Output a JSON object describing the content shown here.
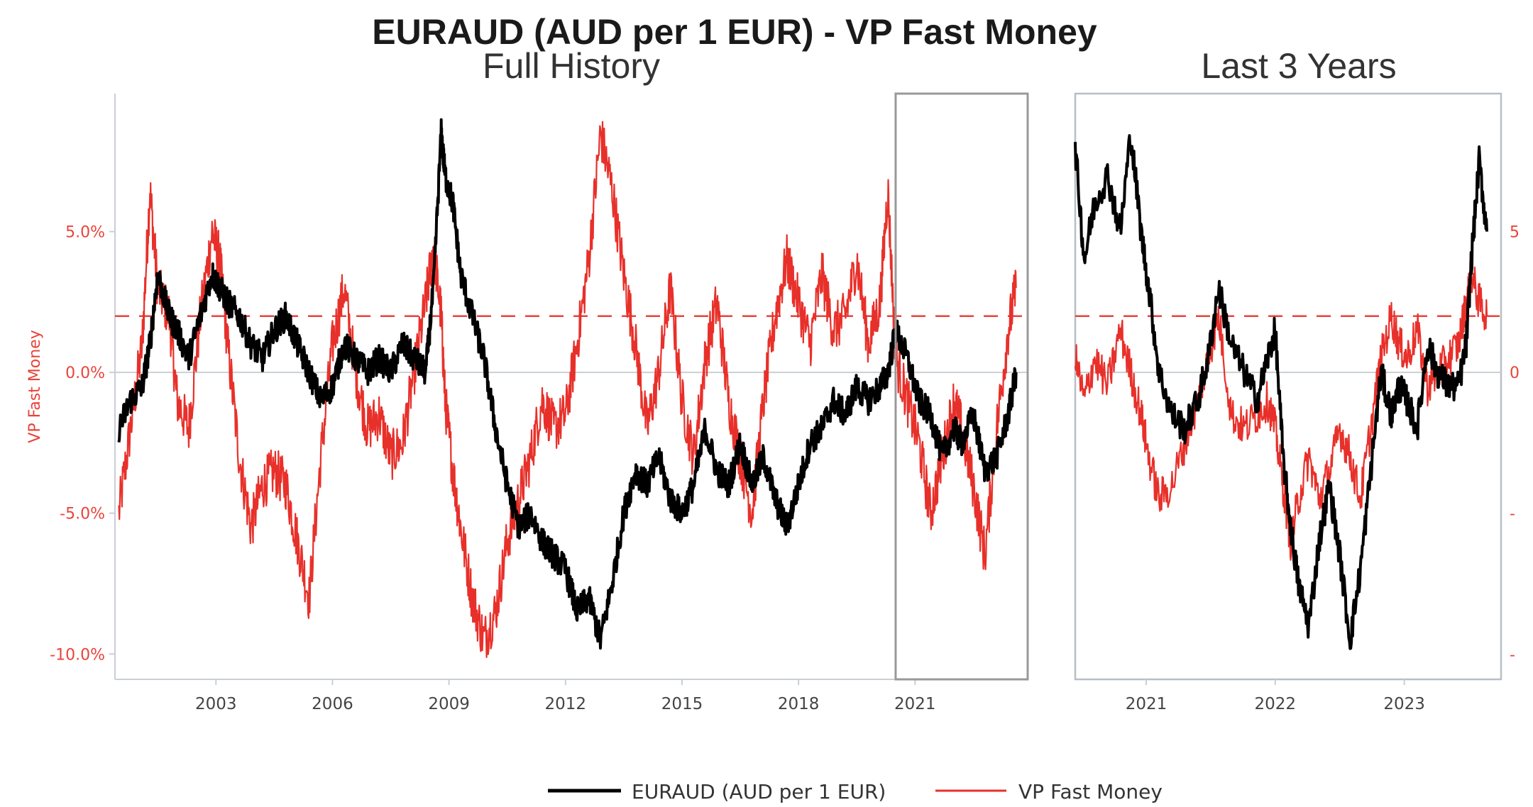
{
  "chart_data": {
    "type": "line",
    "title": "EURAUD (AUD per 1 EUR) - VP Fast Money",
    "ylabel": "VP Fast Money",
    "colors": {
      "euraud": "#000000",
      "vp": "#e8302a",
      "threshold": "#e8443a",
      "zero": "#c9cfd4",
      "frame": "#b7bec4"
    },
    "threshold": 2.0,
    "panels": [
      {
        "subtitle": "Full History",
        "xlim": [
          2000.4,
          2023.9
        ],
        "ylim": [
          -10.9,
          9.9
        ],
        "yticks": [
          5.0,
          0.0,
          -5.0,
          -10.0
        ],
        "ytick_labels": [
          "5.0%",
          "0.0%",
          "-5.0%",
          "-10.0%"
        ],
        "xticks": [
          2003,
          2006,
          2009,
          2012,
          2015,
          2018,
          2021
        ],
        "xtick_labels": [
          "2003",
          "2006",
          "2009",
          "2012",
          "2015",
          "2018",
          "2021"
        ],
        "highlight_range": [
          2020.5,
          2023.75
        ]
      },
      {
        "subtitle": "Last 3 Years",
        "xlim": [
          2020.45,
          2023.75
        ],
        "ylim": [
          -10.9,
          9.9
        ],
        "xticks": [
          2021,
          2022,
          2023
        ],
        "xtick_labels": [
          "2021",
          "2022",
          "2023"
        ],
        "right_ticks": [
          5.0,
          0.0,
          -5.0,
          -10.0
        ],
        "right_tick_labels": [
          "5",
          "0",
          "-",
          "-"
        ]
      }
    ],
    "series": [
      {
        "name": "EURAUD (AUD per 1 EUR)",
        "color": "#000000",
        "x": [
          2000.5,
          2000.8,
          2001.1,
          2001.3,
          2001.5,
          2001.8,
          2002.0,
          2002.3,
          2002.6,
          2002.9,
          2003.1,
          2003.3,
          2003.6,
          2003.9,
          2004.2,
          2004.5,
          2004.8,
          2005.1,
          2005.4,
          2005.7,
          2006.0,
          2006.3,
          2006.6,
          2006.9,
          2007.2,
          2007.5,
          2007.8,
          2008.1,
          2008.4,
          2008.6,
          2008.8,
          2008.9,
          2009.1,
          2009.3,
          2009.6,
          2009.9,
          2010.2,
          2010.5,
          2010.8,
          2011.1,
          2011.4,
          2011.7,
          2012.0,
          2012.3,
          2012.6,
          2012.9,
          2013.2,
          2013.5,
          2013.8,
          2014.1,
          2014.4,
          2014.7,
          2015.0,
          2015.3,
          2015.6,
          2015.9,
          2016.2,
          2016.5,
          2016.8,
          2017.1,
          2017.4,
          2017.7,
          2018.0,
          2018.3,
          2018.6,
          2018.9,
          2019.2,
          2019.5,
          2019.8,
          2020.1,
          2020.3,
          2020.5,
          2020.8,
          2021.1,
          2021.4,
          2021.7,
          2022.0,
          2022.2,
          2022.5,
          2022.8,
          2023.1,
          2023.4,
          2023.6
        ],
        "values": [
          -2.0,
          -1.0,
          -0.5,
          1.0,
          3.5,
          2.0,
          1.5,
          0.5,
          2.0,
          3.5,
          3.0,
          2.5,
          2.0,
          1.0,
          0.5,
          1.5,
          2.0,
          1.0,
          0.0,
          -1.0,
          -0.5,
          1.0,
          0.5,
          0.0,
          0.5,
          0.0,
          1.0,
          0.5,
          0.0,
          3.0,
          8.5,
          7.0,
          6.0,
          3.5,
          2.0,
          0.5,
          -2.0,
          -4.0,
          -5.5,
          -5.0,
          -6.0,
          -6.5,
          -7.0,
          -8.5,
          -8.0,
          -9.5,
          -7.5,
          -5.0,
          -3.5,
          -4.0,
          -3.0,
          -4.5,
          -5.0,
          -4.0,
          -2.0,
          -3.5,
          -4.0,
          -2.5,
          -4.0,
          -3.0,
          -4.5,
          -5.5,
          -4.0,
          -2.5,
          -2.0,
          -1.0,
          -1.5,
          -0.5,
          -1.0,
          -0.5,
          0.0,
          1.5,
          0.5,
          -1.0,
          -1.5,
          -3.0,
          -2.0,
          -2.5,
          -1.5,
          -3.5,
          -3.0,
          -1.5,
          0.0
        ]
      },
      {
        "name": "VP Fast Money",
        "color": "#e8302a",
        "x": [
          2000.5,
          2000.8,
          2001.1,
          2001.3,
          2001.5,
          2001.8,
          2002.0,
          2002.3,
          2002.6,
          2002.9,
          2003.1,
          2003.3,
          2003.6,
          2003.9,
          2004.2,
          2004.5,
          2004.8,
          2005.1,
          2005.4,
          2005.7,
          2006.0,
          2006.3,
          2006.6,
          2006.9,
          2007.2,
          2007.5,
          2007.8,
          2008.1,
          2008.4,
          2008.6,
          2008.8,
          2008.9,
          2009.1,
          2009.3,
          2009.6,
          2009.9,
          2010.2,
          2010.5,
          2010.8,
          2011.1,
          2011.4,
          2011.7,
          2012.0,
          2012.3,
          2012.6,
          2012.9,
          2013.2,
          2013.5,
          2013.8,
          2014.1,
          2014.4,
          2014.7,
          2015.0,
          2015.3,
          2015.6,
          2015.9,
          2016.2,
          2016.5,
          2016.8,
          2017.1,
          2017.4,
          2017.7,
          2018.0,
          2018.3,
          2018.6,
          2018.9,
          2019.2,
          2019.5,
          2019.8,
          2020.1,
          2020.3,
          2020.5,
          2020.8,
          2021.1,
          2021.4,
          2021.7,
          2022.0,
          2022.2,
          2022.5,
          2022.8,
          2023.1,
          2023.4,
          2023.6
        ],
        "values": [
          -5.0,
          -2.0,
          1.0,
          6.5,
          3.0,
          2.0,
          -1.0,
          -2.0,
          2.0,
          5.0,
          4.0,
          1.0,
          -3.0,
          -5.5,
          -4.0,
          -3.5,
          -4.0,
          -6.0,
          -8.0,
          -3.0,
          1.0,
          3.0,
          0.0,
          -2.0,
          -1.5,
          -3.0,
          -2.5,
          0.0,
          2.5,
          4.5,
          2.0,
          -1.0,
          -3.5,
          -5.5,
          -8.0,
          -9.5,
          -8.5,
          -6.0,
          -4.5,
          -3.0,
          -1.0,
          -2.0,
          -1.5,
          1.0,
          4.0,
          8.5,
          6.5,
          3.5,
          1.0,
          -2.0,
          0.0,
          3.0,
          -1.0,
          -3.0,
          0.5,
          2.5,
          -1.0,
          -3.0,
          -5.0,
          -1.0,
          2.0,
          4.0,
          2.5,
          1.0,
          3.5,
          1.5,
          2.0,
          4.0,
          1.0,
          2.5,
          6.5,
          0.5,
          -1.0,
          -2.5,
          -5.0,
          -3.0,
          -1.0,
          -2.0,
          -4.0,
          -6.5,
          -2.0,
          1.5,
          3.0
        ]
      }
    ],
    "zoom_series": [
      {
        "name": "EURAUD (AUD per 1 EUR)",
        "color": "#000000",
        "x": [
          2020.45,
          2020.52,
          2020.6,
          2020.7,
          2020.8,
          2020.88,
          2020.96,
          2021.02,
          2021.1,
          2021.2,
          2021.3,
          2021.4,
          2021.48,
          2021.56,
          2021.66,
          2021.76,
          2021.86,
          2021.94,
          2022.0,
          2022.06,
          2022.12,
          2022.18,
          2022.26,
          2022.34,
          2022.42,
          2022.5,
          2022.58,
          2022.66,
          2022.74,
          2022.82,
          2022.9,
          2022.96,
          2023.02,
          2023.1,
          2023.18,
          2023.26,
          2023.34,
          2023.42,
          2023.48,
          2023.52,
          2023.58,
          2023.64
        ],
        "values": [
          8.0,
          4.0,
          6.0,
          7.0,
          5.0,
          8.5,
          5.0,
          3.0,
          0.0,
          -1.5,
          -2.0,
          -1.0,
          0.5,
          3.0,
          1.0,
          0.0,
          -1.0,
          0.5,
          1.5,
          -3.0,
          -5.5,
          -7.5,
          -9.0,
          -6.0,
          -4.0,
          -6.5,
          -9.5,
          -7.0,
          -3.5,
          0.0,
          -1.5,
          -0.5,
          -1.0,
          -2.0,
          1.0,
          0.0,
          -0.5,
          -0.5,
          1.0,
          4.0,
          7.5,
          5.0
        ]
      },
      {
        "name": "VP Fast Money",
        "color": "#e8302a",
        "x": [
          2020.45,
          2020.52,
          2020.6,
          2020.7,
          2020.8,
          2020.88,
          2020.96,
          2021.02,
          2021.1,
          2021.2,
          2021.3,
          2021.4,
          2021.48,
          2021.56,
          2021.66,
          2021.76,
          2021.86,
          2021.94,
          2022.0,
          2022.06,
          2022.12,
          2022.18,
          2022.26,
          2022.34,
          2022.42,
          2022.5,
          2022.58,
          2022.66,
          2022.74,
          2022.82,
          2022.9,
          2022.96,
          2023.02,
          2023.1,
          2023.18,
          2023.26,
          2023.34,
          2023.42,
          2023.48,
          2023.52,
          2023.58,
          2023.64
        ],
        "values": [
          0.5,
          -1.0,
          0.5,
          -0.5,
          1.5,
          0.0,
          -1.5,
          -3.0,
          -4.5,
          -4.0,
          -2.5,
          -1.0,
          0.5,
          2.0,
          -1.5,
          -2.0,
          -1.5,
          -1.0,
          -2.0,
          -4.0,
          -6.0,
          -4.5,
          -3.0,
          -4.5,
          -3.5,
          -2.0,
          -3.0,
          -4.5,
          -2.0,
          0.5,
          2.0,
          1.0,
          0.5,
          1.5,
          -0.5,
          0.0,
          0.5,
          1.0,
          2.5,
          3.5,
          2.5,
          2.0
        ]
      }
    ],
    "legend": {
      "placement": "bottom",
      "entries": [
        {
          "label": "EURAUD (AUD per 1 EUR)",
          "color": "#000000"
        },
        {
          "label": "VP Fast Money",
          "color": "#e8302a"
        }
      ]
    }
  }
}
